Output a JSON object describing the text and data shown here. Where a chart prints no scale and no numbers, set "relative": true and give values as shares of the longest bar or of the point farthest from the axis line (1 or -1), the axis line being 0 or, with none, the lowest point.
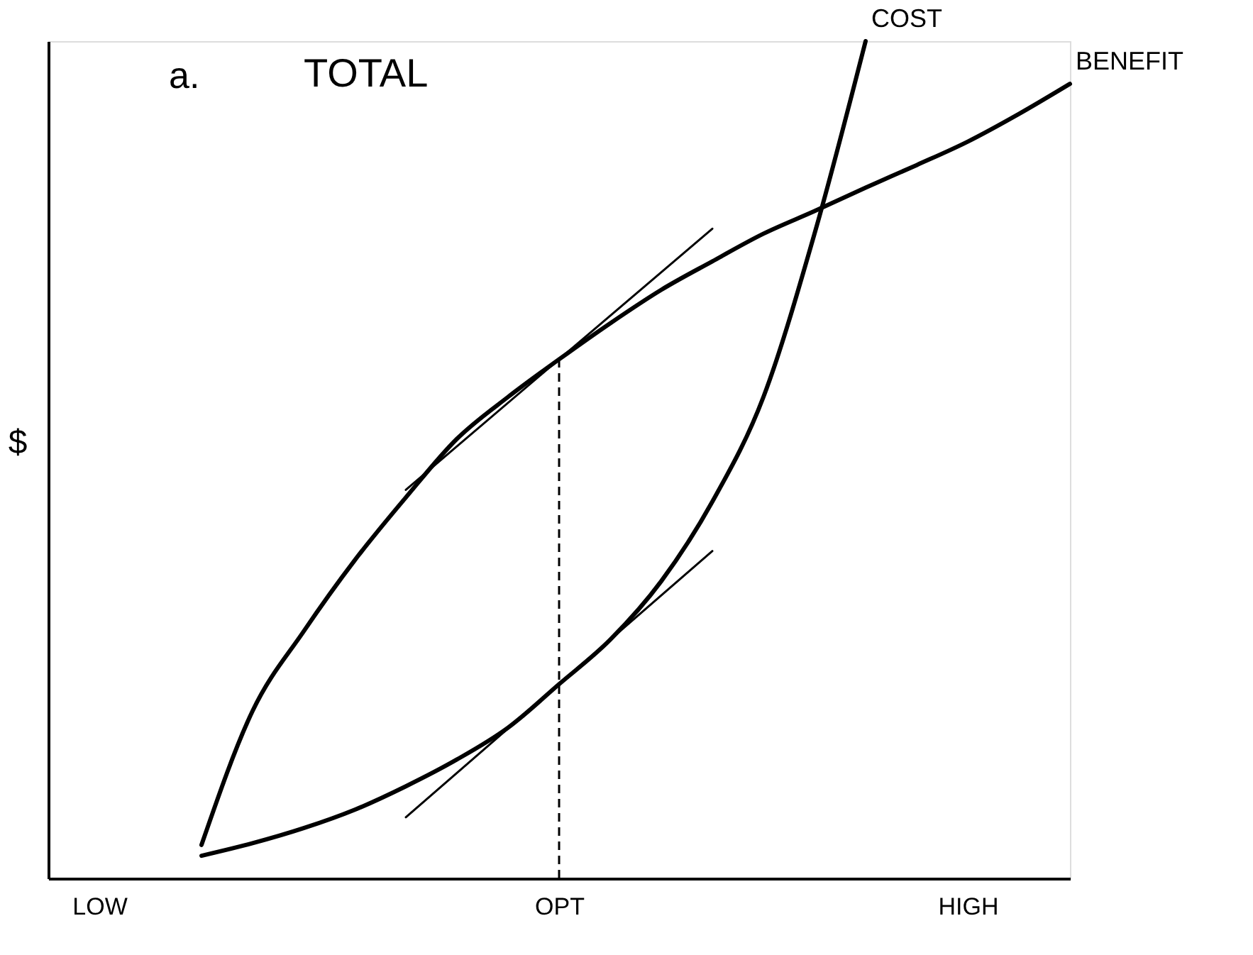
{
  "chart_data": {
    "type": "line",
    "title": "TOTAL",
    "ylabel": "$",
    "relative": true,
    "grid": false,
    "marker": "none",
    "annotations": [
      "a."
    ],
    "categories": [
      null,
      "LOW",
      null,
      null,
      null,
      null,
      null,
      null,
      null,
      null,
      "OPT",
      null,
      null,
      null,
      null,
      null,
      null,
      null,
      "HIGH",
      null,
      null
    ],
    "series": [
      {
        "name": "BENEFIT",
        "color": "#000000",
        "line_style": "solid",
        "values": [
          null,
          null,
          null,
          0.04,
          0.2,
          0.295,
          0.38,
          0.455,
          0.525,
          0.575,
          0.62,
          0.663,
          0.703,
          0.737,
          0.77,
          0.797,
          0.825,
          0.852,
          0.88,
          0.913,
          0.949
        ]
      },
      {
        "name": "COST",
        "color": "#000000",
        "line_style": "solid",
        "values": [
          null,
          null,
          null,
          0.027,
          0.042,
          0.06,
          0.082,
          0.11,
          0.142,
          0.18,
          0.232,
          0.285,
          0.355,
          0.45,
          0.575,
          0.77,
          1.0,
          null,
          null,
          null,
          null
        ]
      },
      {
        "color": "#000000",
        "line_style": "solid",
        "values": [
          null,
          null,
          null,
          null,
          null,
          null,
          null,
          0.464,
          null,
          null,
          0.62,
          null,
          null,
          0.776,
          null,
          null,
          null,
          null,
          null,
          null,
          null
        ]
      },
      {
        "color": "#000000",
        "line_style": "solid",
        "values": [
          null,
          null,
          null,
          null,
          null,
          null,
          null,
          0.073,
          null,
          null,
          0.232,
          null,
          null,
          0.391,
          null,
          null,
          null,
          null,
          null,
          null,
          null
        ]
      }
    ],
    "ref_lines": [
      {
        "axis": "x",
        "value": "OPT",
        "line_style": "dashed",
        "color": "#000000"
      }
    ]
  }
}
